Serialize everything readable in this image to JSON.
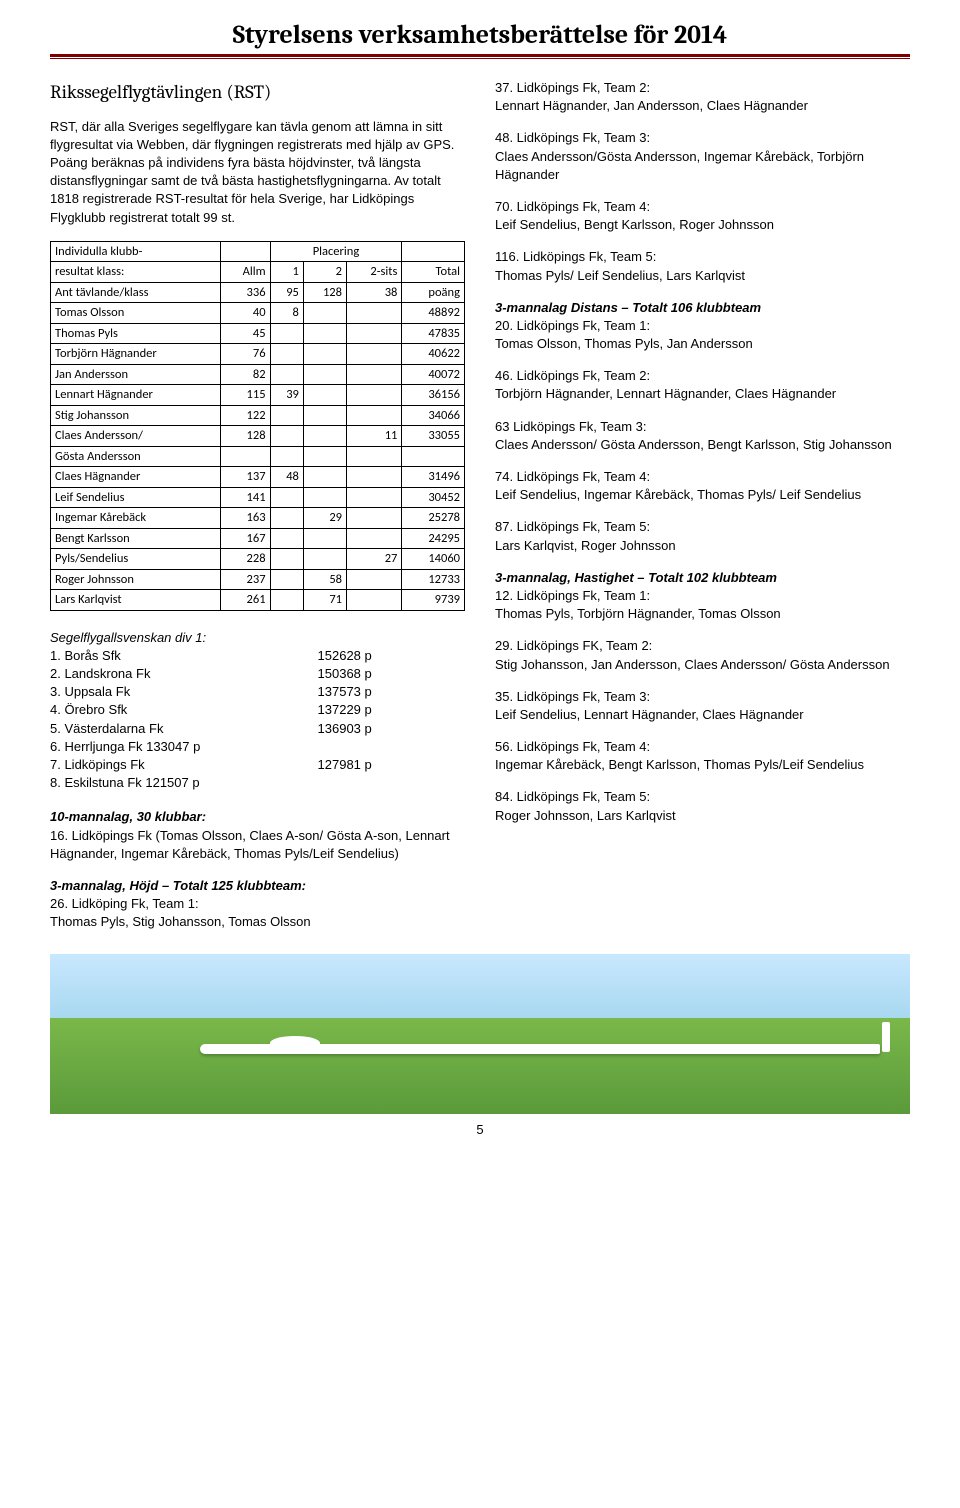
{
  "header": {
    "title": "Styrelsens verksamhetsberättelse för 2014"
  },
  "left": {
    "rst_heading": "Rikssegelflygtävlingen (RST)",
    "rst_body": "RST, där alla Sveriges segelflygare kan tävla genom att lämna in sitt flygresultat via Webben, där flygningen registrerats med hjälp av GPS. Poäng beräknas på individens fyra bästa höjdvinster, två längsta distansflygningar samt de två bästa hastighetsflygningarna. Av totalt 1818 registrerade RST-resultat för hela Sverige, har Lidköpings Flygklubb registrerat totalt 99 st.",
    "table": {
      "type": "table",
      "border_color": "#000000",
      "font_family": "Calibri",
      "h1a": "Individulla klubb-",
      "h1b": "Placering",
      "h2_label": "resultat klass:",
      "h2_cols": [
        "Allm",
        "1",
        "2",
        "2-sits",
        "Total"
      ],
      "counts_label": "Ant tävlande/klass",
      "counts": [
        "336",
        "95",
        "128",
        "38",
        "poäng"
      ],
      "rows": [
        {
          "name": "Tomas Olsson",
          "allm": "40",
          "c1": "8",
          "c2": "",
          "c2s": "",
          "total": "48892"
        },
        {
          "name": "Thomas Pyls",
          "allm": "45",
          "c1": "",
          "c2": "",
          "c2s": "",
          "total": "47835"
        },
        {
          "name": "Torbjörn Hägnander",
          "allm": "76",
          "c1": "",
          "c2": "",
          "c2s": "",
          "total": "40622"
        },
        {
          "name": "Jan Andersson",
          "allm": "82",
          "c1": "",
          "c2": "",
          "c2s": "",
          "total": "40072"
        },
        {
          "name": "Lennart Hägnander",
          "allm": "115",
          "c1": "39",
          "c2": "",
          "c2s": "",
          "total": "36156"
        },
        {
          "name": "Stig Johansson",
          "allm": "122",
          "c1": "",
          "c2": "",
          "c2s": "",
          "total": "34066"
        },
        {
          "name": "Claes Andersson/",
          "allm": "128",
          "c1": "",
          "c2": "",
          "c2s": "11",
          "total": "33055"
        },
        {
          "name": "Gösta Andersson",
          "allm": "",
          "c1": "",
          "c2": "",
          "c2s": "",
          "total": ""
        },
        {
          "name": "Claes Hägnander",
          "allm": "137",
          "c1": "48",
          "c2": "",
          "c2s": "",
          "total": "31496"
        },
        {
          "name": "Leif Sendelius",
          "allm": "141",
          "c1": "",
          "c2": "",
          "c2s": "",
          "total": "30452"
        },
        {
          "name": "Ingemar Kårebäck",
          "allm": "163",
          "c1": "",
          "c2": "29",
          "c2s": "",
          "total": "25278"
        },
        {
          "name": "Bengt Karlsson",
          "allm": "167",
          "c1": "",
          "c2": "",
          "c2s": "",
          "total": "24295"
        },
        {
          "name": "Pyls/Sendelius",
          "allm": "228",
          "c1": "",
          "c2": "",
          "c2s": "27",
          "total": "14060"
        },
        {
          "name": "Roger Johnsson",
          "allm": "237",
          "c1": "",
          "c2": "58",
          "c2s": "",
          "total": "12733"
        },
        {
          "name": "Lars Karlqvist",
          "allm": "261",
          "c1": "",
          "c2": "71",
          "c2s": "",
          "total": "9739"
        }
      ]
    },
    "allsvenskan_title": "Segelflygallsvenskan div 1:",
    "allsvenskan": [
      {
        "pos": "1. Borås Sfk",
        "pts": "152628 p"
      },
      {
        "pos": "2. Landskrona Fk",
        "pts": "150368 p"
      },
      {
        "pos": "3. Uppsala Fk",
        "pts": "137573 p"
      },
      {
        "pos": "4. Örebro Sfk",
        "pts": "137229 p"
      },
      {
        "pos": "5. Västerdalarna Fk",
        "pts": "136903 p"
      },
      {
        "pos": "6. Herrljunga Fk 133047 p",
        "pts": ""
      },
      {
        "pos": "7. Lidköpings Fk",
        "pts": "127981 p"
      },
      {
        "pos": "8. Eskilstuna Fk 121507 p",
        "pts": ""
      }
    ],
    "tenman_title": "10-mannalag, 30 klubbar:",
    "tenman_body": "16. Lidköpings Fk (Tomas Olsson, Claes A-son/ Gösta A-son, Lennart Hägnander, Ingemar Kårebäck, Thomas Pyls/Leif Sendelius)",
    "hojd_title": "3-mannalag, Höjd – Totalt 125 klubbteam:",
    "hojd_body": "26. Lidköping Fk, Team 1:\nThomas Pyls, Stig Johansson, Tomas Olsson"
  },
  "right": {
    "blocks": [
      {
        "t": "37. Lidköpings Fk, Team 2:",
        "b": "Lennart Hägnander, Jan Andersson, Claes Hägnander"
      },
      {
        "t": "48. Lidköpings Fk, Team 3:",
        "b": "Claes Andersson/Gösta Andersson, Ingemar Kårebäck, Torbjörn Hägnander"
      },
      {
        "t": "70. Lidköpings Fk, Team 4:",
        "b": "Leif Sendelius, Bengt Karlsson, Roger Johnsson"
      },
      {
        "t": "116. Lidköpings Fk, Team 5:",
        "b": "Thomas Pyls/ Leif Sendelius, Lars Karlqvist"
      }
    ],
    "distans_title": "3-mannalag Distans – Totalt 106 klubbteam",
    "distans": [
      {
        "t": "20. Lidköpings Fk, Team 1:",
        "b": "Tomas Olsson, Thomas Pyls, Jan Andersson"
      },
      {
        "t": "46. Lidköpings Fk, Team 2:",
        "b": "Torbjörn Hägnander, Lennart Hägnander, Claes Hägnander"
      },
      {
        "t": "63 Lidköpings Fk, Team 3:",
        "b": "Claes Andersson/ Gösta Andersson, Bengt Karlsson, Stig Johansson"
      },
      {
        "t": "74. Lidköpings Fk, Team 4:",
        "b": "Leif Sendelius, Ingemar Kårebäck, Thomas Pyls/ Leif Sendelius"
      },
      {
        "t": "87. Lidköpings Fk, Team 5:",
        "b": "Lars Karlqvist, Roger Johnsson"
      }
    ],
    "hastighet_title": "3-mannalag, Hastighet – Totalt 102 klubbteam",
    "hastighet": [
      {
        "t": "12. Lidköpings Fk, Team 1:",
        "b": "Thomas Pyls, Torbjörn Hägnander, Tomas Olsson"
      },
      {
        "t": "29. Lidköpings FK, Team 2:",
        "b": "Stig Johansson, Jan Andersson, Claes Andersson/ Gösta Andersson"
      },
      {
        "t": "35. Lidköpings Fk, Team 3:",
        "b": "Leif Sendelius, Lennart Hägnander, Claes Hägnander"
      },
      {
        "t": "56. Lidköpings Fk, Team 4:",
        "b": "Ingemar Kårebäck, Bengt Karlsson, Thomas Pyls/Leif Sendelius"
      },
      {
        "t": "84. Lidköpings Fk, Team 5:",
        "b": "Roger Johnsson, Lars Karlqvist"
      }
    ]
  },
  "footer": {
    "page_number": "5",
    "image": {
      "type": "infographic",
      "sky_gradient_top": "#c8e8ff",
      "sky_gradient_bottom": "#a8d8f0",
      "grass_top": "#7ab84a",
      "grass_bottom": "#5a9a3a",
      "glider_color": "#ffffff"
    }
  }
}
